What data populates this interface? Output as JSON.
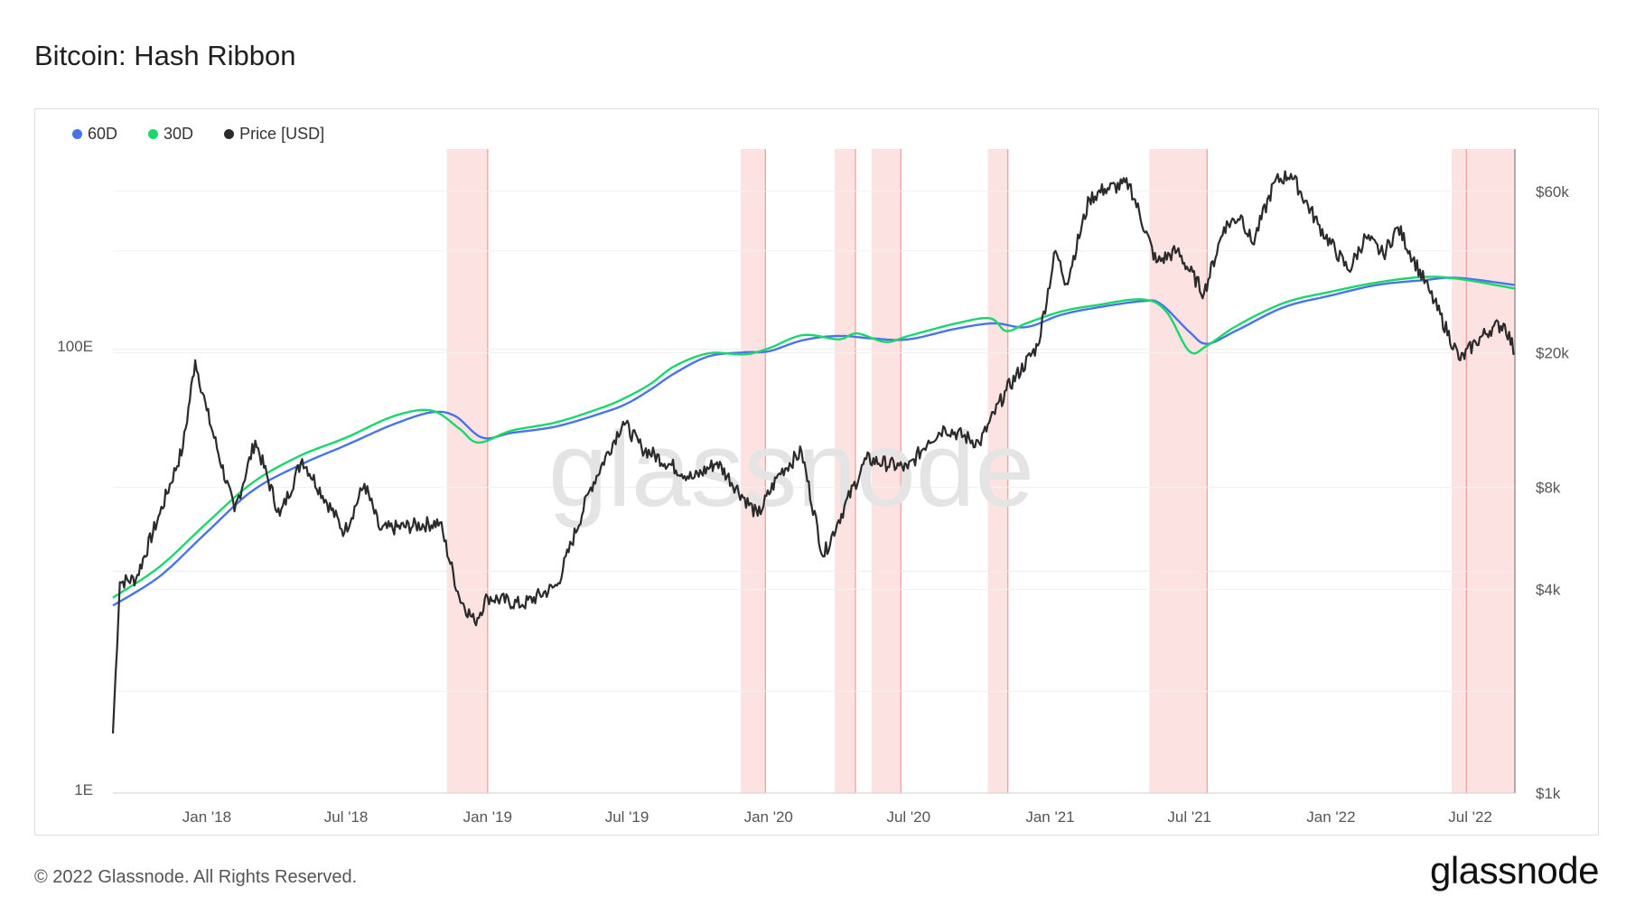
{
  "title": "Bitcoin: Hash Ribbon",
  "footer": "© 2022 Glassnode. All Rights Reserved.",
  "logo_text": "glassnode",
  "watermark": "glassnode",
  "chart_data": {
    "type": "line",
    "title": "Bitcoin: Hash Ribbon",
    "legend_position": "top-left",
    "grid": true,
    "series": [
      {
        "name": "60D",
        "color": "#4a73e8",
        "axis": "left"
      },
      {
        "name": "30D",
        "color": "#1ad76a",
        "axis": "left"
      },
      {
        "name": "Price [USD]",
        "color": "#2b2b2b",
        "axis": "right"
      }
    ],
    "x_ticks": [
      "Jan '18",
      "Jul '18",
      "Jan '19",
      "Jul '19",
      "Jan '20",
      "Jul '20",
      "Jan '21",
      "Jul '21",
      "Jan '22",
      "Jul '22"
    ],
    "x_range": [
      "2017-09-01",
      "2022-08-28"
    ],
    "y_left": {
      "scale": "log",
      "ticks": [
        "1E",
        "100E"
      ],
      "range_EH": [
        1,
        800
      ]
    },
    "y_right": {
      "scale": "log",
      "ticks": [
        "$1k",
        "$4k",
        "$8k",
        "$20k",
        "$60k"
      ],
      "range_usd": [
        1000,
        80000
      ]
    },
    "capitulation_periods": [
      {
        "start": "2018-11-09",
        "end": "2019-01-01"
      },
      {
        "start": "2019-11-26",
        "end": "2019-12-28"
      },
      {
        "start": "2020-03-27",
        "end": "2020-04-23"
      },
      {
        "start": "2020-05-14",
        "end": "2020-06-21"
      },
      {
        "start": "2020-10-12",
        "end": "2020-11-07"
      },
      {
        "start": "2021-05-10",
        "end": "2021-07-24"
      },
      {
        "start": "2022-06-07",
        "end": "2022-08-28"
      }
    ],
    "buy_signals": [
      "2019-01-01",
      "2019-12-28",
      "2020-04-23",
      "2020-06-21",
      "2020-11-07",
      "2021-07-24",
      "2022-06-26",
      "2022-08-28"
    ],
    "hash_rate_60d": [
      [
        "2017-09-01",
        7
      ],
      [
        "2017-11-01",
        9.5
      ],
      [
        "2018-01-01",
        15
      ],
      [
        "2018-03-01",
        23
      ],
      [
        "2018-05-01",
        30
      ],
      [
        "2018-07-01",
        37
      ],
      [
        "2018-09-01",
        46
      ],
      [
        "2018-10-20",
        52
      ],
      [
        "2018-11-20",
        50
      ],
      [
        "2018-12-25",
        40
      ],
      [
        "2019-02-01",
        42
      ],
      [
        "2019-04-01",
        45
      ],
      [
        "2019-06-01",
        52
      ],
      [
        "2019-07-01",
        57
      ],
      [
        "2019-08-01",
        66
      ],
      [
        "2019-09-01",
        78
      ],
      [
        "2019-10-15",
        93
      ],
      [
        "2019-12-01",
        97
      ],
      [
        "2020-01-01",
        98
      ],
      [
        "2020-02-15",
        110
      ],
      [
        "2020-04-01",
        115
      ],
      [
        "2020-05-15",
        112
      ],
      [
        "2020-07-01",
        111
      ],
      [
        "2020-09-01",
        124
      ],
      [
        "2020-10-20",
        131
      ],
      [
        "2020-12-01",
        126
      ],
      [
        "2021-01-15",
        143
      ],
      [
        "2021-03-01",
        154
      ],
      [
        "2021-05-01",
        165
      ],
      [
        "2021-05-25",
        160
      ],
      [
        "2021-07-01",
        120
      ],
      [
        "2021-07-24",
        106
      ],
      [
        "2021-09-01",
        122
      ],
      [
        "2021-11-01",
        155
      ],
      [
        "2022-01-01",
        175
      ],
      [
        "2022-03-01",
        195
      ],
      [
        "2022-05-01",
        205
      ],
      [
        "2022-06-15",
        210
      ],
      [
        "2022-08-28",
        195
      ]
    ],
    "hash_rate_30d": [
      [
        "2017-09-01",
        7.6
      ],
      [
        "2017-11-01",
        10.5
      ],
      [
        "2018-01-01",
        16.5
      ],
      [
        "2018-03-01",
        25
      ],
      [
        "2018-05-01",
        33
      ],
      [
        "2018-07-01",
        40
      ],
      [
        "2018-09-01",
        50
      ],
      [
        "2018-10-20",
        53
      ],
      [
        "2018-11-25",
        44
      ],
      [
        "2018-12-20",
        38
      ],
      [
        "2019-02-01",
        43
      ],
      [
        "2019-04-01",
        47
      ],
      [
        "2019-06-01",
        55
      ],
      [
        "2019-07-01",
        61
      ],
      [
        "2019-08-01",
        70
      ],
      [
        "2019-09-01",
        84
      ],
      [
        "2019-10-15",
        96
      ],
      [
        "2019-12-01",
        95
      ],
      [
        "2020-01-01",
        101
      ],
      [
        "2020-02-15",
        116
      ],
      [
        "2020-04-01",
        111
      ],
      [
        "2020-04-25",
        118
      ],
      [
        "2020-06-01",
        108
      ],
      [
        "2020-07-01",
        115
      ],
      [
        "2020-09-01",
        131
      ],
      [
        "2020-10-15",
        138
      ],
      [
        "2020-11-05",
        121
      ],
      [
        "2020-12-01",
        131
      ],
      [
        "2021-01-15",
        148
      ],
      [
        "2021-03-01",
        158
      ],
      [
        "2021-05-01",
        168
      ],
      [
        "2021-06-01",
        148
      ],
      [
        "2021-07-01",
        98
      ],
      [
        "2021-07-24",
        104
      ],
      [
        "2021-09-01",
        128
      ],
      [
        "2021-11-01",
        162
      ],
      [
        "2022-01-01",
        182
      ],
      [
        "2022-03-01",
        200
      ],
      [
        "2022-05-01",
        212
      ],
      [
        "2022-06-15",
        208
      ],
      [
        "2022-08-28",
        188
      ]
    ],
    "price_usd": [
      [
        "2017-09-01",
        1500
      ],
      [
        "2017-09-10",
        4200
      ],
      [
        "2017-10-01",
        4300
      ],
      [
        "2017-11-01",
        6700
      ],
      [
        "2017-12-01",
        10500
      ],
      [
        "2017-12-17",
        19000
      ],
      [
        "2018-01-01",
        13500
      ],
      [
        "2018-02-06",
        6800
      ],
      [
        "2018-03-05",
        11000
      ],
      [
        "2018-04-06",
        6600
      ],
      [
        "2018-05-05",
        9700
      ],
      [
        "2018-06-29",
        5900
      ],
      [
        "2018-07-25",
        8200
      ],
      [
        "2018-08-14",
        6000
      ],
      [
        "2018-10-31",
        6300
      ],
      [
        "2018-11-25",
        3800
      ],
      [
        "2018-12-15",
        3200
      ],
      [
        "2019-01-01",
        3800
      ],
      [
        "2019-02-15",
        3600
      ],
      [
        "2019-04-01",
        4100
      ],
      [
        "2019-05-15",
        8000
      ],
      [
        "2019-06-26",
        12500
      ],
      [
        "2019-07-20",
        10500
      ],
      [
        "2019-09-25",
        8500
      ],
      [
        "2019-10-26",
        9500
      ],
      [
        "2019-12-18",
        6600
      ],
      [
        "2020-01-15",
        8800
      ],
      [
        "2020-02-13",
        10200
      ],
      [
        "2020-03-12",
        5000
      ],
      [
        "2020-04-01",
        6400
      ],
      [
        "2020-05-07",
        9700
      ],
      [
        "2020-06-30",
        9100
      ],
      [
        "2020-07-27",
        11000
      ],
      [
        "2020-08-17",
        12000
      ],
      [
        "2020-10-01",
        10800
      ],
      [
        "2020-11-05",
        15500
      ],
      [
        "2020-12-16",
        21000
      ],
      [
        "2021-01-08",
        40000
      ],
      [
        "2021-01-22",
        32000
      ],
      [
        "2021-02-21",
        57000
      ],
      [
        "2021-03-13",
        61000
      ],
      [
        "2021-04-14",
        63000
      ],
      [
        "2021-05-19",
        37000
      ],
      [
        "2021-06-15",
        40000
      ],
      [
        "2021-07-20",
        30000
      ],
      [
        "2021-08-15",
        47000
      ],
      [
        "2021-09-06",
        51000
      ],
      [
        "2021-09-21",
        42000
      ],
      [
        "2021-10-20",
        64000
      ],
      [
        "2021-11-10",
        67500
      ],
      [
        "2021-12-15",
        48000
      ],
      [
        "2022-01-24",
        35000
      ],
      [
        "2022-02-15",
        44000
      ],
      [
        "2022-03-10",
        39000
      ],
      [
        "2022-03-29",
        47000
      ],
      [
        "2022-05-10",
        30000
      ],
      [
        "2022-06-18",
        19000
      ],
      [
        "2022-07-08",
        21500
      ],
      [
        "2022-07-30",
        23800
      ],
      [
        "2022-08-15",
        24200
      ],
      [
        "2022-08-28",
        20000
      ]
    ]
  }
}
